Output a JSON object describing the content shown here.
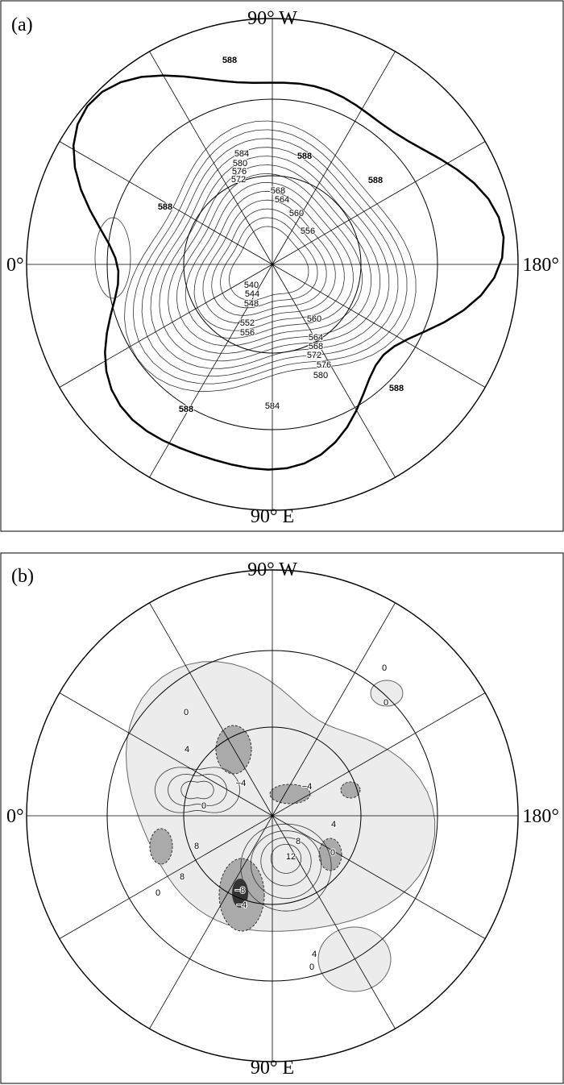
{
  "panels": [
    {
      "label": "(a)",
      "top": "90° W",
      "left": "0°",
      "right": "180°",
      "bottom": "90° E",
      "contour_labels": [
        "588",
        "588",
        "588",
        "588",
        "588",
        "588",
        "584",
        "580",
        "576",
        "572",
        "568",
        "564",
        "560",
        "556",
        "540",
        "544",
        "548",
        "552",
        "556",
        "560",
        "564",
        "568",
        "572",
        "576",
        "580",
        "584"
      ]
    },
    {
      "label": "(b)",
      "top": "90° W",
      "left": "0°",
      "right": "180°",
      "bottom": "90° E",
      "contour_labels": [
        "0",
        "0",
        "0",
        "0",
        "0",
        "0",
        "0",
        "4",
        "4",
        "4",
        "−4",
        "−4",
        "−4",
        "8",
        "8",
        "8",
        "12",
        "−8"
      ]
    }
  ]
}
